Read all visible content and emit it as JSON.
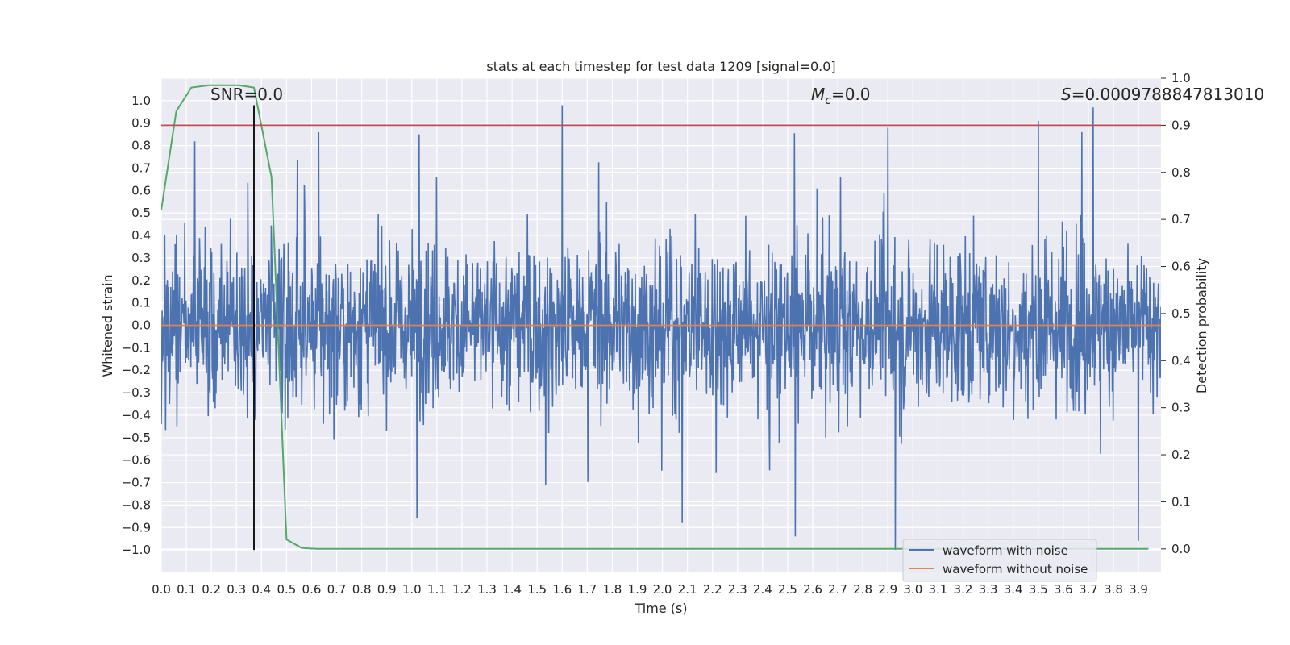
{
  "chart_data": {
    "type": "line",
    "title": "stats at each timestep for test data 1209 [signal=0.0]",
    "xlabel": "Time (s)",
    "ylabel": "Whitened strain",
    "y2label": "Detection probability",
    "xlim": [
      0.0,
      3.99
    ],
    "ylim": [
      -1.1,
      1.1
    ],
    "y2lim": [
      -0.05,
      1.0
    ],
    "xticks": [
      "0.0",
      "0.1",
      "0.2",
      "0.3",
      "0.4",
      "0.5",
      "0.6",
      "0.7",
      "0.8",
      "0.9",
      "1.0",
      "1.1",
      "1.2",
      "1.3",
      "1.4",
      "1.5",
      "1.6",
      "1.7",
      "1.8",
      "1.9",
      "2.0",
      "2.1",
      "2.2",
      "2.3",
      "2.4",
      "2.5",
      "2.6",
      "2.7",
      "2.8",
      "2.9",
      "3.0",
      "3.1",
      "3.2",
      "3.3",
      "3.4",
      "3.5",
      "3.6",
      "3.7",
      "3.8",
      "3.9"
    ],
    "yticks": [
      "1.0",
      "0.9",
      "0.8",
      "0.7",
      "0.6",
      "0.5",
      "0.4",
      "0.3",
      "0.2",
      "0.1",
      "0.0",
      "−0.1",
      "−0.2",
      "−0.3",
      "−0.4",
      "−0.5",
      "−0.6",
      "−0.7",
      "−0.8",
      "−0.9",
      "−1.0"
    ],
    "y2ticks": [
      "1.0",
      "0.9",
      "0.8",
      "0.7",
      "0.6",
      "0.5",
      "0.4",
      "0.3",
      "0.2",
      "0.1",
      "0.0"
    ],
    "grid": true,
    "legend_position": "lower-right",
    "annotations": {
      "snr": "SNR=0.0",
      "mc_symbol": "M",
      "mc_sub": "c",
      "mc_value": "=0.0",
      "s_symbol": "S",
      "s_value": "=0.0009788847813010"
    },
    "series": [
      {
        "name": "waveform with noise",
        "axis": "left",
        "color": "#4c72b0",
        "description_level": "dense noise, amplitude mostly within ±0.4 with peaks reaching about 0.98 and -1.0",
        "peaks": [
          {
            "x": 1.6,
            "y": 0.98
          },
          {
            "x": 3.72,
            "y": 0.97
          },
          {
            "x": 2.93,
            "y": -1.0
          },
          {
            "x": 3.9,
            "y": -0.96
          },
          {
            "x": 2.53,
            "y": -0.94
          },
          {
            "x": 2.9,
            "y": 0.88
          },
          {
            "x": 2.08,
            "y": -0.88
          },
          {
            "x": 1.03,
            "y": 0.85
          },
          {
            "x": 3.5,
            "y": 0.91
          }
        ]
      },
      {
        "name": "waveform without noise",
        "axis": "left",
        "color": "#dd8452",
        "x": [
          0.0,
          3.99
        ],
        "y": [
          0.0,
          0.0
        ]
      },
      {
        "name": "detection probability",
        "axis": "right",
        "color": "#55a868",
        "x": [
          0.0,
          0.06,
          0.12,
          0.19,
          0.25,
          0.31,
          0.37,
          0.44,
          0.5,
          0.56,
          0.62,
          0.69,
          0.75,
          1.0,
          2.0,
          3.0,
          3.94
        ],
        "y": [
          0.72,
          0.93,
          0.98,
          0.985,
          0.985,
          0.985,
          0.98,
          0.79,
          0.02,
          0.002,
          0.0,
          0.0,
          0.0,
          0.0,
          0.0,
          0.0,
          0.0
        ]
      },
      {
        "name": "threshold",
        "axis": "right",
        "color": "#c44e52",
        "x": [
          0.0,
          3.99
        ],
        "y": [
          0.9,
          0.9
        ]
      },
      {
        "name": "marker",
        "axis": "left",
        "color": "#000000",
        "x": [
          0.37,
          0.37
        ],
        "y": [
          -1.0,
          0.98
        ]
      }
    ]
  }
}
